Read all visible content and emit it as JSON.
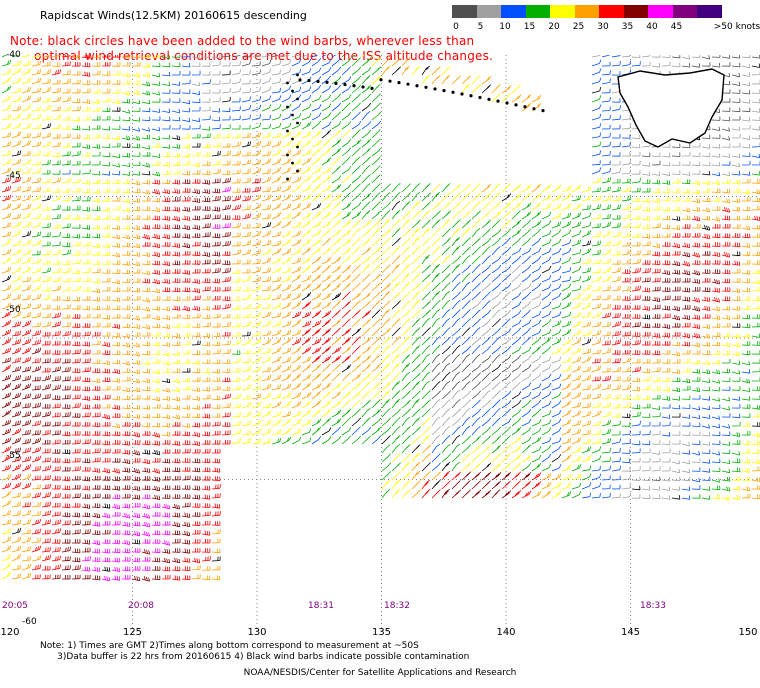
{
  "header": {
    "title": "Rapidscat Winds(12.5KM) 20160615 descending",
    "note_line1": "Note: black circles have been added to the wind barbs, wherever less than",
    "note_line2": "      optimal wind retrieval conditions are met due to the ISS altitude changes."
  },
  "legend": {
    "unit": ">50 knots",
    "labels": [
      "0",
      "5",
      "10",
      "15",
      "20",
      "25",
      "30",
      "35",
      "40",
      "45"
    ],
    "colors": [
      "#505050",
      "#a0a0a0",
      "#0050ff",
      "#00b000",
      "#ffff00",
      "#ffa000",
      "#ff0000",
      "#800000",
      "#ff00ff",
      "#800080",
      "#400080"
    ]
  },
  "axes": {
    "lon_labels": [
      "120",
      "125",
      "130",
      "135",
      "140",
      "145",
      "150"
    ],
    "lat_labels": [
      "-40",
      "-45",
      "-50",
      "-55",
      "-60"
    ]
  },
  "time_labels": [
    "20:05",
    "20:08",
    "18:31",
    "18:32",
    "18:33"
  ],
  "footer": {
    "line1": "Note: 1) Times are GMT 2)Times along bottom correspond to measurement at ~50S",
    "line2": "      3)Data buffer is 22 hrs from 20160615 4) Black wind barbs indicate possible contamination",
    "credit": "NOAA/NESDIS/Center for Satellite Applications and Research"
  }
}
